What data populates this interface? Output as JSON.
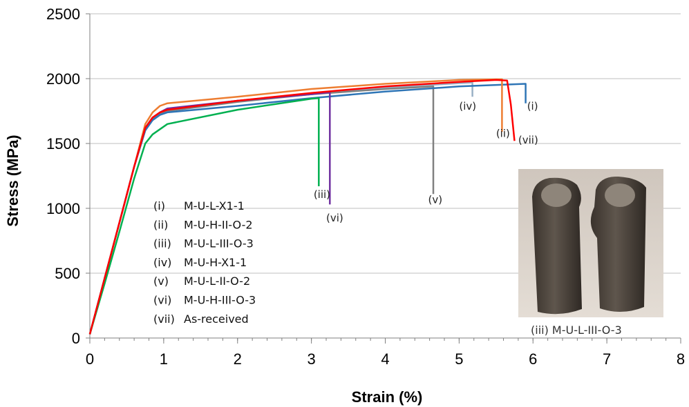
{
  "chart_data": {
    "type": "line",
    "title": "",
    "xlabel": "Strain (%)",
    "ylabel": "Stress (MPa)",
    "xlim": [
      0,
      8
    ],
    "ylim": [
      0,
      2500
    ],
    "xticks": [
      0,
      1,
      2,
      3,
      4,
      5,
      6,
      7,
      8
    ],
    "yticks": [
      0,
      500,
      1000,
      1500,
      2000,
      2500
    ],
    "grid": "horizontal",
    "legend": {
      "placement": "lower-left",
      "entries": [
        {
          "key": "(i)",
          "label": "M-U-L-X1-1"
        },
        {
          "key": "(ii)",
          "label": "M-U-H-II-O-2"
        },
        {
          "key": "(iii)",
          "label": "M-U-L-III-O-3"
        },
        {
          "key": "(iv)",
          "label": "M-U-H-X1-1"
        },
        {
          "key": "(v)",
          "label": "M-U-L-II-O-2"
        },
        {
          "key": "(vi)",
          "label": "M-U-H-III-O-3"
        },
        {
          "key": "(vii)",
          "label": "As-received"
        }
      ]
    },
    "series": [
      {
        "key": "(iv)",
        "color": "#9ab0c6",
        "x": [
          0,
          0.2,
          0.4,
          0.6,
          0.75,
          0.85,
          0.95,
          1.05,
          2,
          3,
          4,
          5,
          5.18,
          5.18
        ],
        "y": [
          30,
          460,
          890,
          1320,
          1620,
          1700,
          1740,
          1760,
          1830,
          1885,
          1930,
          1965,
          1970,
          1860
        ]
      },
      {
        "key": "(v)",
        "color": "#808080",
        "x": [
          0,
          0.2,
          0.4,
          0.6,
          0.75,
          0.85,
          0.95,
          1.05,
          2,
          3,
          4,
          4.65,
          4.65
        ],
        "y": [
          30,
          460,
          890,
          1320,
          1620,
          1690,
          1730,
          1750,
          1820,
          1880,
          1920,
          1940,
          1110
        ]
      },
      {
        "key": "(i)",
        "color": "#2e75b6",
        "x": [
          0,
          0.2,
          0.4,
          0.6,
          0.75,
          0.85,
          0.95,
          1.05,
          2,
          3,
          4,
          5,
          5.9,
          5.9
        ],
        "y": [
          30,
          460,
          890,
          1320,
          1600,
          1680,
          1720,
          1740,
          1790,
          1850,
          1900,
          1940,
          1960,
          1810
        ]
      },
      {
        "key": "(ii)",
        "color": "#ed7d31",
        "x": [
          0,
          0.2,
          0.4,
          0.6,
          0.75,
          0.85,
          0.95,
          1.05,
          2,
          3,
          4,
          5,
          5.58,
          5.58
        ],
        "y": [
          30,
          460,
          890,
          1320,
          1650,
          1740,
          1790,
          1810,
          1860,
          1920,
          1960,
          1990,
          1995,
          1590
        ]
      },
      {
        "key": "(vi)",
        "color": "#7030a0",
        "x": [
          0,
          0.2,
          0.4,
          0.6,
          0.75,
          0.85,
          0.95,
          1.05,
          2,
          3,
          3.25,
          3.25
        ],
        "y": [
          30,
          460,
          890,
          1320,
          1620,
          1700,
          1740,
          1770,
          1830,
          1880,
          1895,
          1030
        ]
      },
      {
        "key": "(iii)",
        "color": "#00b050",
        "x": [
          0,
          0.2,
          0.4,
          0.6,
          0.75,
          0.85,
          0.95,
          1.05,
          2,
          3,
          3.1,
          3.1
        ],
        "y": [
          30,
          420,
          820,
          1230,
          1500,
          1570,
          1610,
          1650,
          1760,
          1845,
          1850,
          1170
        ]
      },
      {
        "key": "(vii)",
        "color": "#ff0000",
        "x": [
          0,
          0.2,
          0.4,
          0.6,
          0.75,
          0.85,
          0.95,
          1.05,
          2,
          3,
          4,
          5,
          5.5,
          5.65,
          5.7,
          5.75
        ],
        "y": [
          30,
          460,
          890,
          1320,
          1620,
          1700,
          1740,
          1760,
          1830,
          1890,
          1940,
          1975,
          1990,
          1985,
          1800,
          1520
        ]
      }
    ],
    "annotations": [
      {
        "text": "(i)",
        "x": 5.92,
        "y": 1760
      },
      {
        "text": "(ii)",
        "x": 5.5,
        "y": 1550
      },
      {
        "text": "(iii)",
        "x": 3.03,
        "y": 1080
      },
      {
        "text": "(iv)",
        "x": 5.0,
        "y": 1760
      },
      {
        "text": "(v)",
        "x": 4.58,
        "y": 1040
      },
      {
        "text": "(vi)",
        "x": 3.2,
        "y": 900
      },
      {
        "text": "(vii)",
        "x": 5.8,
        "y": 1500
      }
    ],
    "inset_caption": "(iii)  M-U-L-III-O-3"
  }
}
